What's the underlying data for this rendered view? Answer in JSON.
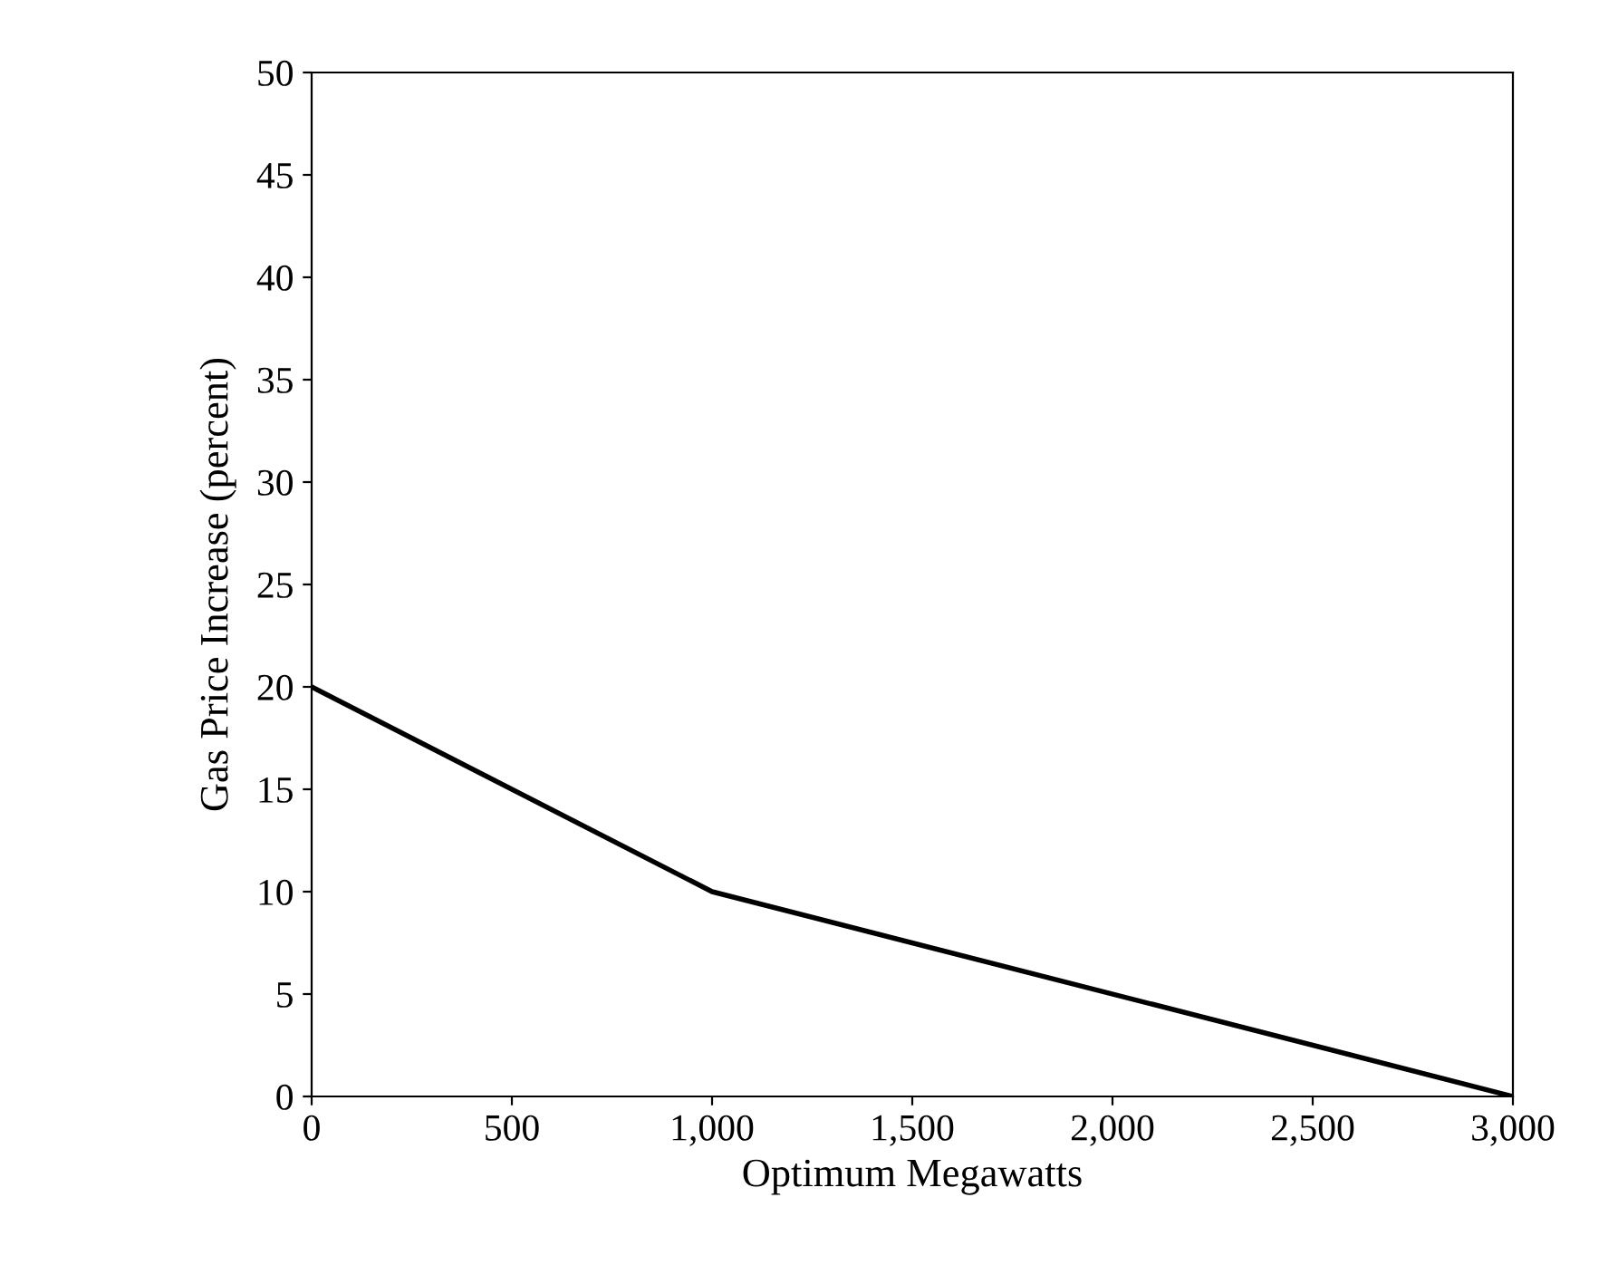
{
  "chart_data": {
    "type": "line",
    "xlabel": "Optimum Megawatts",
    "ylabel": "Gas Price Increase (percent)",
    "x": [
      0,
      1000,
      3000
    ],
    "series": [
      {
        "color": "#000000",
        "values": [
          20,
          10,
          0
        ]
      }
    ],
    "xlim": [
      0,
      3000
    ],
    "ylim": [
      0,
      50
    ],
    "xticks": [
      0,
      500,
      {
        "value": 1000,
        "label": "1,000"
      },
      {
        "value": 1500,
        "label": "1,500"
      },
      {
        "value": 2000,
        "label": "2,000"
      },
      {
        "value": 2500,
        "label": "2,500"
      },
      {
        "value": 3000,
        "label": "3,000"
      }
    ],
    "yticks": [
      0,
      5,
      10,
      15,
      20,
      25,
      30,
      35,
      40,
      45,
      50
    ],
    "grid": false,
    "legend": false,
    "marker": "none",
    "line_style": "solid"
  }
}
